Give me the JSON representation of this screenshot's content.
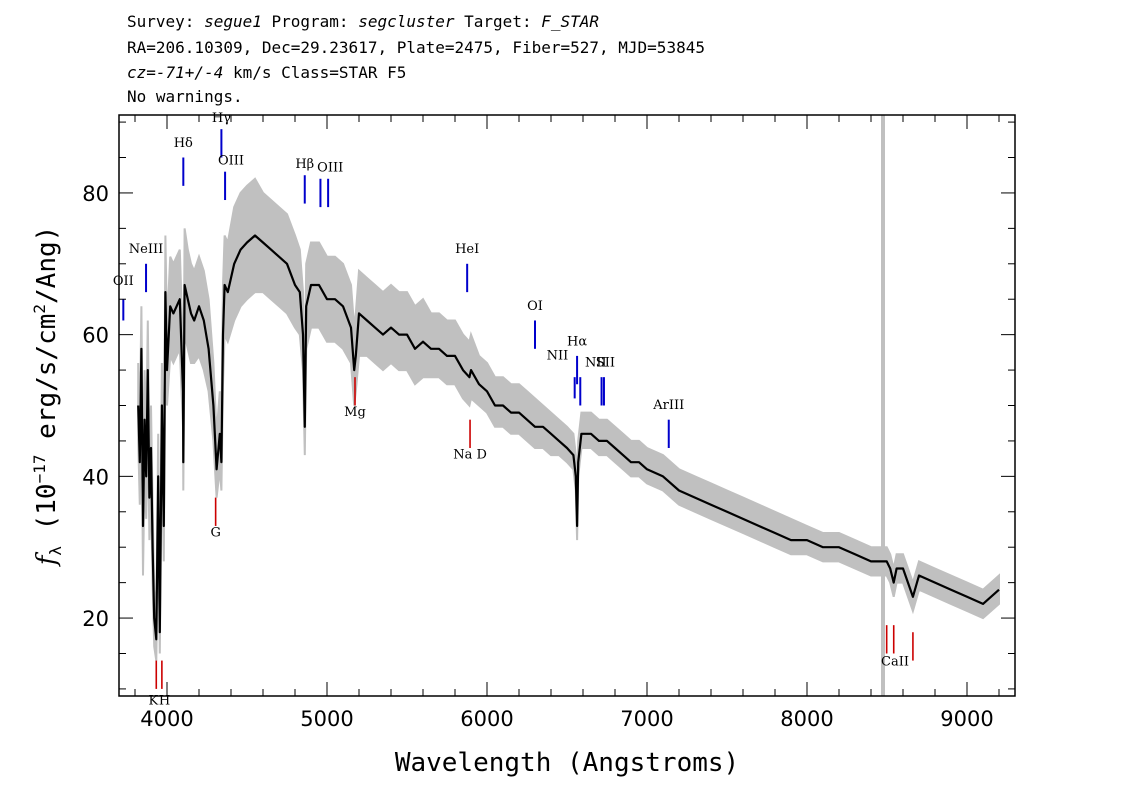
{
  "header": {
    "line1": {
      "survey_label": "Survey: ",
      "survey": "segue1",
      "program_label": " Program: ",
      "program": "segcluster",
      "target_label": " Target: ",
      "target": "F_STAR"
    },
    "line2": "RA=206.10309, Dec=29.23617, Plate=2475, Fiber=527, MJD=53845",
    "line3": {
      "cz": "cz=-71+/-4",
      "rest": " km/s Class=STAR F5"
    },
    "line4": "No warnings."
  },
  "chart_data": {
    "type": "line",
    "title": "",
    "xlabel": "Wavelength (Angstroms)",
    "ylabel_html": "f_λ (10⁻¹⁷ erg/s/cm²/Ang)",
    "ylabel_parts": {
      "f": "f",
      "sub": "λ",
      "pre": " (10",
      "exp": "−17",
      "mid": " erg/s/cm",
      "exp2": "2",
      "post": "/Ang)"
    },
    "xlim": [
      3700,
      9300
    ],
    "ylim": [
      9,
      91
    ],
    "x_ticks": [
      4000,
      5000,
      6000,
      7000,
      8000,
      9000
    ],
    "y_ticks": [
      20,
      40,
      60,
      80
    ],
    "colors": {
      "flux": "#000000",
      "error": "#c0c0c0",
      "emission": "#0000cc",
      "absorption": "#cc0000",
      "sky_line": "#c0c0c0"
    },
    "sky_line_x": 8475,
    "series": [
      {
        "name": "flux",
        "x": [
          3820,
          3830,
          3840,
          3850,
          3860,
          3870,
          3880,
          3890,
          3900,
          3910,
          3920,
          3933,
          3945,
          3955,
          3968,
          3980,
          3990,
          4000,
          4020,
          4040,
          4060,
          4080,
          4100,
          4102,
          4110,
          4130,
          4150,
          4170,
          4200,
          4230,
          4260,
          4290,
          4310,
          4330,
          4340,
          4350,
          4360,
          4380,
          4420,
          4460,
          4500,
          4550,
          4600,
          4650,
          4700,
          4750,
          4800,
          4830,
          4850,
          4861,
          4870,
          4900,
          4950,
          5000,
          5050,
          5100,
          5150,
          5170,
          5180,
          5200,
          5250,
          5300,
          5350,
          5400,
          5450,
          5500,
          5550,
          5600,
          5650,
          5700,
          5750,
          5800,
          5850,
          5890,
          5900,
          5950,
          6000,
          6050,
          6100,
          6150,
          6200,
          6250,
          6300,
          6350,
          6400,
          6450,
          6500,
          6540,
          6555,
          6563,
          6570,
          6590,
          6650,
          6700,
          6750,
          6800,
          6850,
          6900,
          6950,
          7000,
          7100,
          7200,
          7300,
          7400,
          7500,
          7600,
          7700,
          7800,
          7900,
          8000,
          8100,
          8200,
          8300,
          8400,
          8498,
          8520,
          8542,
          8560,
          8600,
          8662,
          8700,
          8800,
          8900,
          9000,
          9100,
          9200
        ],
        "y": [
          50,
          42,
          58,
          33,
          48,
          40,
          55,
          37,
          44,
          30,
          20,
          17,
          40,
          18,
          50,
          33,
          66,
          55,
          64,
          63,
          64,
          65,
          52,
          42,
          67,
          65,
          63,
          62,
          64,
          62,
          58,
          50,
          41,
          46,
          42,
          60,
          67,
          66,
          70,
          72,
          73,
          74,
          73,
          72,
          71,
          70,
          67,
          66,
          60,
          47,
          64,
          67,
          67,
          65,
          65,
          64,
          61,
          55,
          57,
          63,
          62,
          61,
          60,
          61,
          60,
          60,
          58,
          59,
          58,
          58,
          57,
          57,
          55,
          54,
          55,
          53,
          52,
          50,
          50,
          49,
          49,
          48,
          47,
          47,
          46,
          45,
          44,
          43,
          40,
          33,
          42,
          46,
          46,
          45,
          45,
          44,
          43,
          42,
          42,
          41,
          40,
          38,
          37,
          36,
          35,
          34,
          33,
          32,
          31,
          31,
          30,
          30,
          29,
          28,
          28,
          27,
          25,
          27,
          27,
          23,
          26,
          25,
          24,
          23,
          22,
          24
        ]
      },
      {
        "name": "error",
        "lower": [
          45,
          36,
          52,
          26,
          41,
          34,
          48,
          31,
          38,
          25,
          16,
          14,
          34,
          15,
          44,
          28,
          58,
          50,
          57,
          56,
          57,
          58,
          47,
          38,
          60,
          58,
          56,
          56,
          57,
          55,
          52,
          45,
          37,
          41,
          38,
          53,
          60,
          59,
          62,
          64,
          65,
          66,
          66,
          65,
          64,
          63,
          61,
          60,
          55,
          43,
          58,
          61,
          61,
          59,
          59,
          58,
          56,
          50,
          52,
          57,
          57,
          56,
          55,
          56,
          55,
          55,
          53,
          54,
          54,
          54,
          53,
          53,
          51,
          50,
          51,
          50,
          49,
          47,
          47,
          46,
          46,
          45,
          44,
          44,
          43,
          43,
          42,
          41,
          38,
          31,
          40,
          44,
          44,
          43,
          43,
          42,
          41,
          40,
          40,
          39,
          38,
          36,
          35,
          34,
          33,
          32,
          31,
          30,
          29,
          29,
          28,
          28,
          27,
          26,
          26,
          25,
          23,
          25,
          25,
          21,
          24,
          23,
          22,
          21,
          20,
          22
        ],
        "upper": [
          56,
          48,
          64,
          40,
          55,
          46,
          62,
          43,
          50,
          36,
          24,
          21,
          46,
          22,
          56,
          38,
          74,
          61,
          71,
          70,
          71,
          72,
          58,
          47,
          75,
          72,
          70,
          69,
          71,
          69,
          65,
          56,
          46,
          52,
          47,
          67,
          74,
          73,
          78,
          80,
          81,
          82,
          80,
          79,
          78,
          77,
          74,
          72,
          66,
          52,
          70,
          73,
          73,
          71,
          71,
          70,
          67,
          61,
          63,
          69,
          68,
          67,
          66,
          67,
          66,
          66,
          64,
          65,
          63,
          63,
          62,
          62,
          60,
          59,
          60,
          57,
          56,
          54,
          54,
          53,
          53,
          52,
          51,
          50,
          49,
          48,
          47,
          46,
          43,
          36,
          45,
          49,
          49,
          48,
          48,
          47,
          46,
          45,
          45,
          44,
          43,
          41,
          40,
          39,
          38,
          37,
          36,
          35,
          34,
          33,
          32,
          32,
          31,
          30,
          30,
          29,
          27,
          29,
          29,
          25,
          28,
          27,
          26,
          25,
          24,
          26
        ]
      }
    ],
    "emission_lines": [
      {
        "label": "OII",
        "x": 3727,
        "y_top": 65,
        "y_bot": 62,
        "lx": 3727,
        "ly": 67
      },
      {
        "label": "NeIII",
        "x": 3869,
        "y_top": 70,
        "y_bot": 66,
        "lx": 3869,
        "ly": 71.5
      },
      {
        "label": "Hδ",
        "x": 4102,
        "y_top": 85,
        "y_bot": 81,
        "lx": 4102,
        "ly": 86.5
      },
      {
        "label": "Hγ",
        "x": 4340,
        "y_top": 89,
        "y_bot": 85,
        "lx": 4340,
        "ly": 90
      },
      {
        "label": "OIII",
        "x": 4363,
        "y_top": 83,
        "y_bot": 79,
        "lx": 4400,
        "ly": 84
      },
      {
        "label": "Hβ",
        "x": 4861,
        "y_top": 82.5,
        "y_bot": 78.5,
        "lx": 4861,
        "ly": 83.5
      },
      {
        "label": "OIII",
        "x": 4959,
        "y_top": 82,
        "y_bot": 78,
        "lx": 5020,
        "ly": 83
      },
      {
        "label": "OIII",
        "x": 5007,
        "y_top": 82,
        "y_bot": 78,
        "lx": 5020,
        "ly": 83
      },
      {
        "label": "HeI",
        "x": 5876,
        "y_top": 70,
        "y_bot": 66,
        "lx": 5876,
        "ly": 71.5
      },
      {
        "label": "OI",
        "x": 6300,
        "y_top": 62,
        "y_bot": 58,
        "lx": 6300,
        "ly": 63.5
      },
      {
        "label": "NII",
        "x": 6548,
        "y_top": 54,
        "y_bot": 51,
        "lx": 6440,
        "ly": 56.5
      },
      {
        "label": "Hα",
        "x": 6563,
        "y_top": 57,
        "y_bot": 53,
        "lx": 6563,
        "ly": 58.5
      },
      {
        "label": "NII",
        "x": 6583,
        "y_top": 54,
        "y_bot": 50,
        "lx": 6680,
        "ly": 55.5
      },
      {
        "label": "SII",
        "x": 6716,
        "y_top": 54,
        "y_bot": 50,
        "lx": 6740,
        "ly": 55.5
      },
      {
        "label": "SII",
        "x": 6731,
        "y_top": 54,
        "y_bot": 50,
        "lx": 6740,
        "ly": 55.5
      },
      {
        "label": "ArIII",
        "x": 7136,
        "y_top": 48,
        "y_bot": 44,
        "lx": 7136,
        "ly": 49.5
      }
    ],
    "absorption_lines": [
      {
        "label": "K",
        "x": 3933,
        "y_top": 14,
        "y_bot": 10,
        "lx": 3915,
        "ly": 7.8
      },
      {
        "label": "H",
        "x": 3968,
        "y_top": 14,
        "y_bot": 10,
        "lx": 3985,
        "ly": 7.8
      },
      {
        "label": "G",
        "x": 4304,
        "y_top": 37,
        "y_bot": 33,
        "lx": 4304,
        "ly": 31.5
      },
      {
        "label": "Mg",
        "x": 5175,
        "y_top": 54,
        "y_bot": 50,
        "lx": 5175,
        "ly": 48.5
      },
      {
        "label": "Na D",
        "x": 5894,
        "y_top": 48,
        "y_bot": 44,
        "lx": 5894,
        "ly": 42.5
      },
      {
        "label": "CaII",
        "x": 8498,
        "y_top": 19,
        "y_bot": 15,
        "lx": 8550,
        "ly": 13.3
      },
      {
        "label": "CaII",
        "x": 8542,
        "y_top": 19,
        "y_bot": 15,
        "lx": 8550,
        "ly": 13.3
      },
      {
        "label": "CaII",
        "x": 8662,
        "y_top": 18,
        "y_bot": 14,
        "lx": 8550,
        "ly": 13.3
      }
    ]
  }
}
